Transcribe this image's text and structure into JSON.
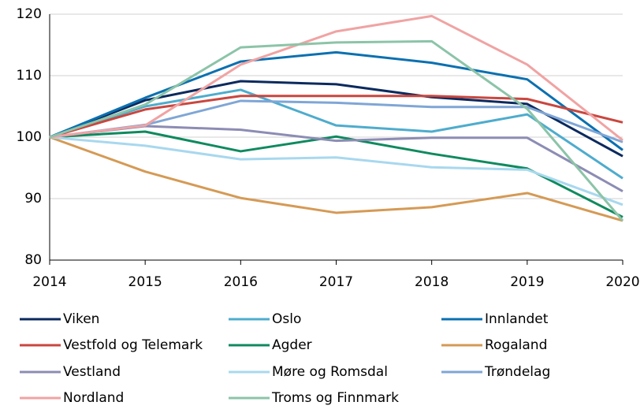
{
  "chart_data": {
    "type": "line",
    "x": [
      2014,
      2015,
      2016,
      2017,
      2018,
      2019,
      2020
    ],
    "xlim": [
      2014,
      2020
    ],
    "xticks": [
      2014,
      2015,
      2016,
      2017,
      2018,
      2019,
      2020
    ],
    "ylim": [
      80,
      120
    ],
    "yticks": [
      80,
      90,
      100,
      110,
      120
    ],
    "grid": true,
    "series": [
      {
        "name": "Viken",
        "color": "#0b2a5e",
        "values": [
          100,
          106,
          109.1,
          108.6,
          106.5,
          105.4,
          96.9
        ]
      },
      {
        "name": "Oslo",
        "color": "#4eaccd",
        "values": [
          100,
          105,
          107.7,
          101.9,
          100.9,
          103.7,
          93.3
        ]
      },
      {
        "name": "Innlandet",
        "color": "#0b70b0",
        "values": [
          100,
          106.4,
          112.3,
          113.8,
          112.1,
          109.4,
          97.9
        ]
      },
      {
        "name": "Vestfold og Telemark",
        "color": "#c9473f",
        "values": [
          100,
          104.5,
          106.7,
          106.7,
          106.7,
          106.2,
          102.4
        ]
      },
      {
        "name": "Agder",
        "color": "#0f8a5f",
        "values": [
          100,
          100.9,
          97.7,
          100.1,
          97.3,
          94.9,
          87
        ]
      },
      {
        "name": "Rogaland",
        "color": "#d59a55",
        "values": [
          100,
          94.4,
          90.1,
          87.7,
          88.6,
          90.9,
          86.4
        ]
      },
      {
        "name": "Vestland",
        "color": "#8c8cb4",
        "values": [
          100,
          101.8,
          101.2,
          99.4,
          99.9,
          99.9,
          91.2
        ]
      },
      {
        "name": "Møre og Romsdal",
        "color": "#a8d8ee",
        "values": [
          100,
          98.6,
          96.4,
          96.7,
          95.1,
          94.7,
          89
        ]
      },
      {
        "name": "Trøndelag",
        "color": "#7fa6d6",
        "values": [
          100,
          102,
          105.9,
          105.6,
          104.9,
          104.9,
          99.2
        ]
      },
      {
        "name": "Nordland",
        "color": "#f0a3a3",
        "values": [
          100,
          101.9,
          111.8,
          117.2,
          119.7,
          111.8,
          99.5
        ]
      },
      {
        "name": "Troms og Finnmark",
        "color": "#8cc4a8",
        "values": [
          100,
          105.3,
          114.6,
          115.4,
          115.6,
          104.6,
          86.4
        ]
      }
    ]
  }
}
